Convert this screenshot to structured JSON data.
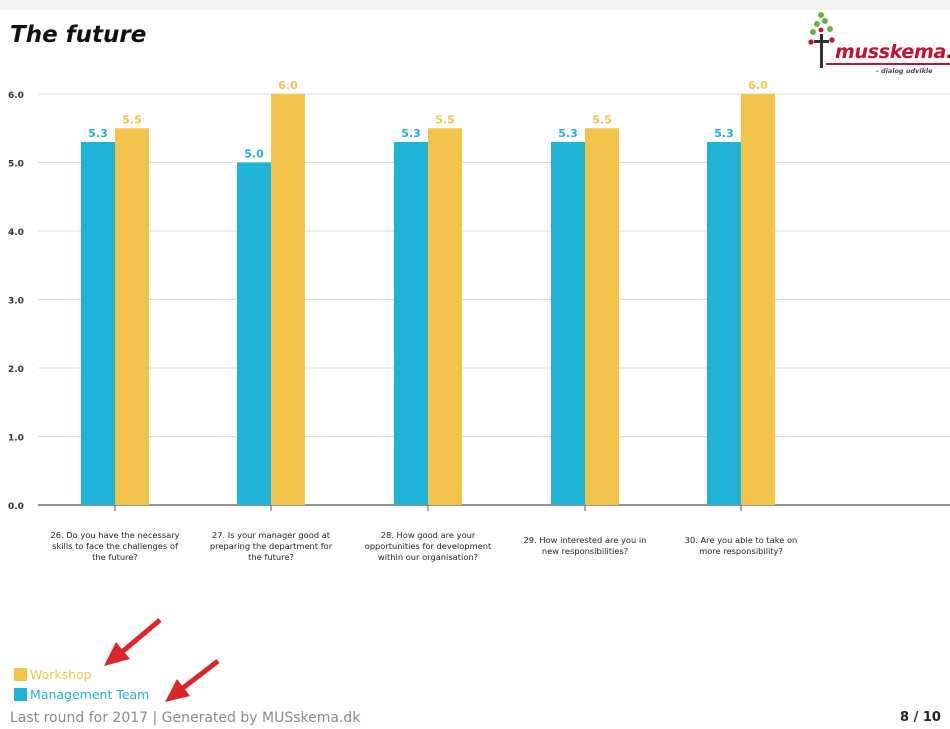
{
  "page": {
    "title": "The future",
    "footer": "Last round for 2017 | Generated by MUSskema.dk",
    "page_number": "8 / 10"
  },
  "logo": {
    "brand": "musskema.dk",
    "tagline": "- dialog udvikle"
  },
  "legend": [
    {
      "label": "Workshop",
      "color": "#f2c44b"
    },
    {
      "label": "Management Team",
      "color": "#1fb3d6"
    }
  ],
  "annotations": {
    "arrow_color": "#d9262b"
  },
  "chart_data": {
    "type": "bar",
    "title": "",
    "xlabel": "",
    "ylabel": "",
    "ylim": [
      0,
      6
    ],
    "y_ticks": [
      "0.0",
      "1.0",
      "2.0",
      "3.0",
      "4.0",
      "5.0",
      "6.0"
    ],
    "grid": true,
    "categories": [
      [
        "26. Do you have the necessary",
        "skills to face the challenges of",
        "the future?"
      ],
      [
        "27. Is your manager good at",
        "preparing the department for",
        "the future?"
      ],
      [
        "28. How good are your",
        "opportunities for development",
        "within our organisation?"
      ],
      [
        "29. How interested are you in",
        "new responsibilities?"
      ],
      [
        "30. Are you able to take on",
        "more responsibility?"
      ]
    ],
    "series": [
      {
        "name": "Management Team",
        "color": "#1fb3d6",
        "values": [
          5.3,
          5.0,
          5.3,
          5.3,
          5.3
        ],
        "labels": [
          "5.3",
          "5.0",
          "5.3",
          "5.3",
          "5.3"
        ]
      },
      {
        "name": "Workshop",
        "color": "#f2c44b",
        "values": [
          5.5,
          6.0,
          5.5,
          5.5,
          6.0
        ],
        "labels": [
          "5.5",
          "6.0",
          "5.5",
          "5.5",
          "6.0"
        ]
      }
    ]
  }
}
